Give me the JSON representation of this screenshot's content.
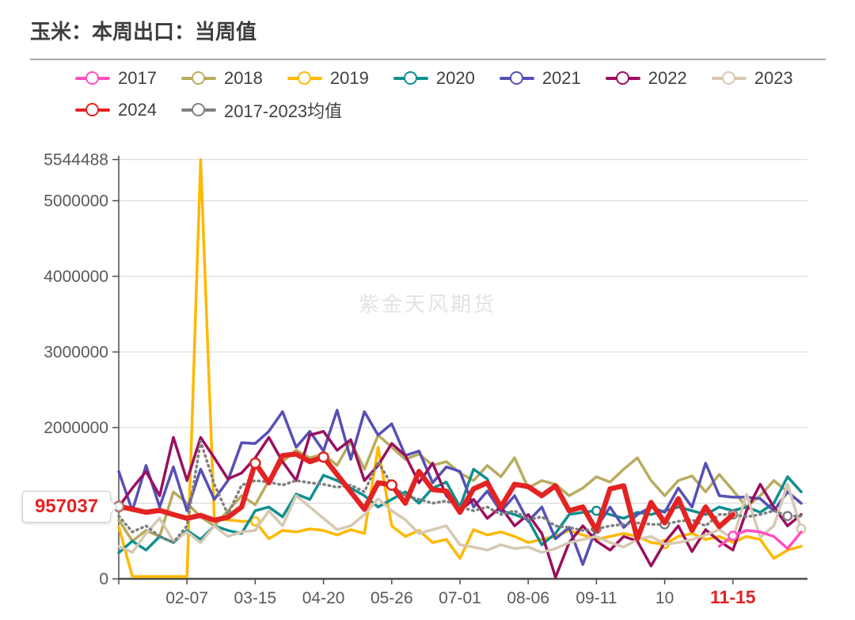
{
  "title": "玉米：本周出口：当周值",
  "watermark": "紫金天风期货",
  "callout": {
    "value": "957037"
  },
  "colors": {
    "axis_line": "#4d4d4d",
    "axis_label": "#595959",
    "gridline": "#dcdcdc",
    "highlight_label": "#e32322",
    "title_text": "#3d3d3d",
    "legend_text": "#404040",
    "watermark_text": "#e3e3e3"
  },
  "legend": [
    {
      "label": "2017",
      "color": "#ff4fc1"
    },
    {
      "label": "2018",
      "color": "#b9ab5e"
    },
    {
      "label": "2019",
      "color": "#ffb800"
    },
    {
      "label": "2020",
      "color": "#0f8f8f"
    },
    {
      "label": "2021",
      "color": "#5650b5"
    },
    {
      "label": "2022",
      "color": "#9a105e"
    },
    {
      "label": "2023",
      "color": "#d6c8b2"
    },
    {
      "label": "2024",
      "color": "#e32322"
    },
    {
      "label": "2017-2023均值",
      "color": "#808080"
    }
  ],
  "chart_data": {
    "type": "line",
    "title": "玉米：本周出口：当周值",
    "x_unit": "week-of-year (1-51)",
    "ylim": [
      0,
      5544488
    ],
    "grid_values": [
      1000000,
      2000000,
      3000000,
      4000000,
      5000000,
      5544488
    ],
    "y_ticks": [
      {
        "label": "0",
        "value": 0
      },
      {
        "label": "2000000",
        "value": 2000000
      },
      {
        "label": "3000000",
        "value": 3000000
      },
      {
        "label": "4000000",
        "value": 4000000
      },
      {
        "label": "5000000",
        "value": 5000000
      },
      {
        "label": "5544488",
        "value": 5544488
      }
    ],
    "x_ticks": [
      {
        "label": "02-07",
        "week": 6,
        "highlight": false
      },
      {
        "label": "03-15",
        "week": 11,
        "highlight": false
      },
      {
        "label": "04-20",
        "week": 16,
        "highlight": false
      },
      {
        "label": "05-26",
        "week": 21,
        "highlight": false
      },
      {
        "label": "07-01",
        "week": 26,
        "highlight": false
      },
      {
        "label": "08-06",
        "week": 31,
        "highlight": false
      },
      {
        "label": "09-11",
        "week": 36,
        "highlight": false
      },
      {
        "label": "10",
        "week": 41,
        "highlight": false
      },
      {
        "label": "11-15",
        "week": 46,
        "highlight": true
      }
    ],
    "legend_position": "top",
    "grid": true,
    "annotation": {
      "text": "957037",
      "series": "2024",
      "week": 1,
      "value": 957037
    },
    "series": [
      {
        "name": "2018",
        "color": "#b9ab5e",
        "width": 3.5,
        "dash": null,
        "marker_weeks": [],
        "values": [
          780000,
          500000,
          640000,
          560000,
          1150000,
          1000000,
          820000,
          700000,
          900000,
          1100000,
          980000,
          1300000,
          1550000,
          1700000,
          1600000,
          1650000,
          1500000,
          1820000,
          1450000,
          1900000,
          1740000,
          1580000,
          1650000,
          1500000,
          1550000,
          1400000,
          1300000,
          1500000,
          1350000,
          1600000,
          1200000,
          1300000,
          1250000,
          1100000,
          1200000,
          1350000,
          1280000,
          1450000,
          1600000,
          1300000,
          1100000,
          1300000,
          1360000,
          1150000,
          1380000,
          1170000,
          950000,
          1100000,
          1300000,
          1150000,
          1000000
        ]
      },
      {
        "name": "2019",
        "color": "#ffb800",
        "width": 3.5,
        "dash": null,
        "marker_weeks": [
          11,
          41
        ],
        "values": [
          690000,
          30000,
          30000,
          30000,
          30000,
          30000,
          5544488,
          800000,
          780000,
          760000,
          760000,
          530000,
          640000,
          620000,
          660000,
          640000,
          580000,
          650000,
          600000,
          1740000,
          700000,
          560000,
          640000,
          480000,
          520000,
          270000,
          650000,
          580000,
          620000,
          560000,
          480000,
          520000,
          560000,
          640000,
          580000,
          520000,
          560000,
          600000,
          560000,
          480000,
          460000,
          560000,
          600000,
          520000,
          560000,
          480000,
          560000,
          520000,
          270000,
          380000,
          430000
        ]
      },
      {
        "name": "2020",
        "color": "#0f8f8f",
        "width": 3.5,
        "dash": null,
        "marker_weeks": [
          36
        ],
        "values": [
          345000,
          500000,
          380000,
          560000,
          480000,
          640000,
          520000,
          700000,
          640000,
          600000,
          900000,
          950000,
          820000,
          1120000,
          1050000,
          1370000,
          1300000,
          1200000,
          1100000,
          950000,
          1050000,
          1150000,
          1000000,
          1200000,
          1280000,
          950000,
          1450000,
          1320000,
          900000,
          850000,
          780000,
          450000,
          600000,
          850000,
          880000,
          900000,
          850000,
          800000,
          880000,
          850000,
          900000,
          950000,
          900000,
          850000,
          950000,
          900000,
          950000,
          880000,
          1000000,
          1350000,
          1150000
        ]
      },
      {
        "name": "2021",
        "color": "#5650b5",
        "width": 3.5,
        "dash": null,
        "marker_weeks": [],
        "values": [
          1420000,
          900000,
          1500000,
          950000,
          1480000,
          900000,
          1450000,
          1050000,
          1300000,
          1800000,
          1790000,
          1950000,
          2210000,
          1740000,
          1950000,
          1690000,
          2230000,
          1580000,
          2210000,
          1900000,
          2050000,
          1630000,
          1690000,
          1270000,
          1480000,
          1420000,
          950000,
          1160000,
          890000,
          1100000,
          760000,
          950000,
          530000,
          680000,
          190000,
          680000,
          950000,
          680000,
          850000,
          950000,
          880000,
          1200000,
          950000,
          1530000,
          1100000,
          1080000,
          1080000,
          1060000,
          900000,
          1150000,
          1000000
        ]
      },
      {
        "name": "2022",
        "color": "#9a105e",
        "width": 3.5,
        "dash": null,
        "marker_weeks": [],
        "values": [
          950000,
          1200000,
          1420000,
          1100000,
          1870000,
          1300000,
          1870000,
          1600000,
          1320000,
          1400000,
          1600000,
          1870000,
          1550000,
          1300000,
          1900000,
          1950000,
          1700000,
          1840000,
          1300000,
          1500000,
          1790000,
          1630000,
          1270000,
          1530000,
          1100000,
          900000,
          1050000,
          800000,
          950000,
          700000,
          850000,
          600000,
          20000,
          480000,
          700000,
          500000,
          380000,
          560000,
          500000,
          170000,
          480000,
          700000,
          360000,
          650000,
          500000,
          380000,
          900000,
          1250000,
          950000,
          700000,
          850000
        ]
      },
      {
        "name": "2023",
        "color": "#d6c8b2",
        "width": 3.5,
        "dash": null,
        "marker_weeks": [
          51
        ],
        "values": [
          430000,
          350000,
          600000,
          800000,
          500000,
          620000,
          480000,
          700000,
          560000,
          620000,
          640000,
          900000,
          700000,
          1100000,
          950000,
          800000,
          650000,
          700000,
          850000,
          1060000,
          900000,
          780000,
          600000,
          650000,
          700000,
          450000,
          420000,
          380000,
          450000,
          400000,
          420000,
          350000,
          400000,
          480000,
          520000,
          560000,
          480000,
          420000,
          520000,
          560000,
          460000,
          480000,
          520000,
          580000,
          650000,
          530000,
          1120000,
          550000,
          700000,
          1250000,
          660000
        ]
      },
      {
        "name": "2017",
        "color": "#ff4fc1",
        "width": 3.5,
        "dash": null,
        "marker_weeks": [
          46
        ],
        "values": [
          null,
          null,
          null,
          null,
          null,
          null,
          null,
          null,
          null,
          null,
          null,
          null,
          null,
          null,
          null,
          null,
          null,
          null,
          null,
          null,
          null,
          null,
          null,
          null,
          null,
          null,
          null,
          null,
          null,
          null,
          null,
          null,
          null,
          null,
          null,
          null,
          null,
          null,
          null,
          null,
          null,
          null,
          null,
          null,
          430000,
          570000,
          640000,
          620000,
          560000,
          400000,
          620000
        ]
      },
      {
        "name": "2017-2023均值",
        "color": "#808080",
        "width": 3.5,
        "dash": "1.5 5",
        "marker_weeks": [
          36,
          41,
          46,
          50
        ],
        "values": [
          830000,
          620000,
          700000,
          560000,
          480000,
          700000,
          1820000,
          1250000,
          850000,
          1240000,
          1300000,
          1280000,
          1240000,
          1300000,
          1270000,
          1250000,
          1210000,
          1240000,
          1150000,
          1550000,
          1240000,
          1100000,
          1050000,
          1000000,
          1030000,
          950000,
          900000,
          950000,
          850000,
          900000,
          780000,
          820000,
          700000,
          680000,
          640000,
          660000,
          700000,
          720000,
          740000,
          720000,
          720000,
          760000,
          780000,
          700000,
          850000,
          850000,
          820000,
          850000,
          900000,
          830000,
          830000
        ]
      },
      {
        "name": "2024",
        "color": "#e32322",
        "width": 6.5,
        "dash": null,
        "marker_weeks": [
          1,
          11,
          16,
          21
        ],
        "values": [
          957037,
          920000,
          880000,
          905000,
          850000,
          800000,
          840000,
          775000,
          815000,
          950000,
          1530000,
          1270000,
          1630000,
          1650000,
          1550000,
          1610000,
          1380000,
          1150000,
          920000,
          1270000,
          1240000,
          1000000,
          1420000,
          1180000,
          1160000,
          880000,
          1190000,
          1270000,
          950000,
          1250000,
          1220000,
          1100000,
          1230000,
          900000,
          950000,
          640000,
          1190000,
          1230000,
          530000,
          1010000,
          740000,
          1060000,
          640000,
          950000,
          690000,
          850000,
          null,
          null,
          null,
          null,
          null
        ]
      }
    ]
  }
}
